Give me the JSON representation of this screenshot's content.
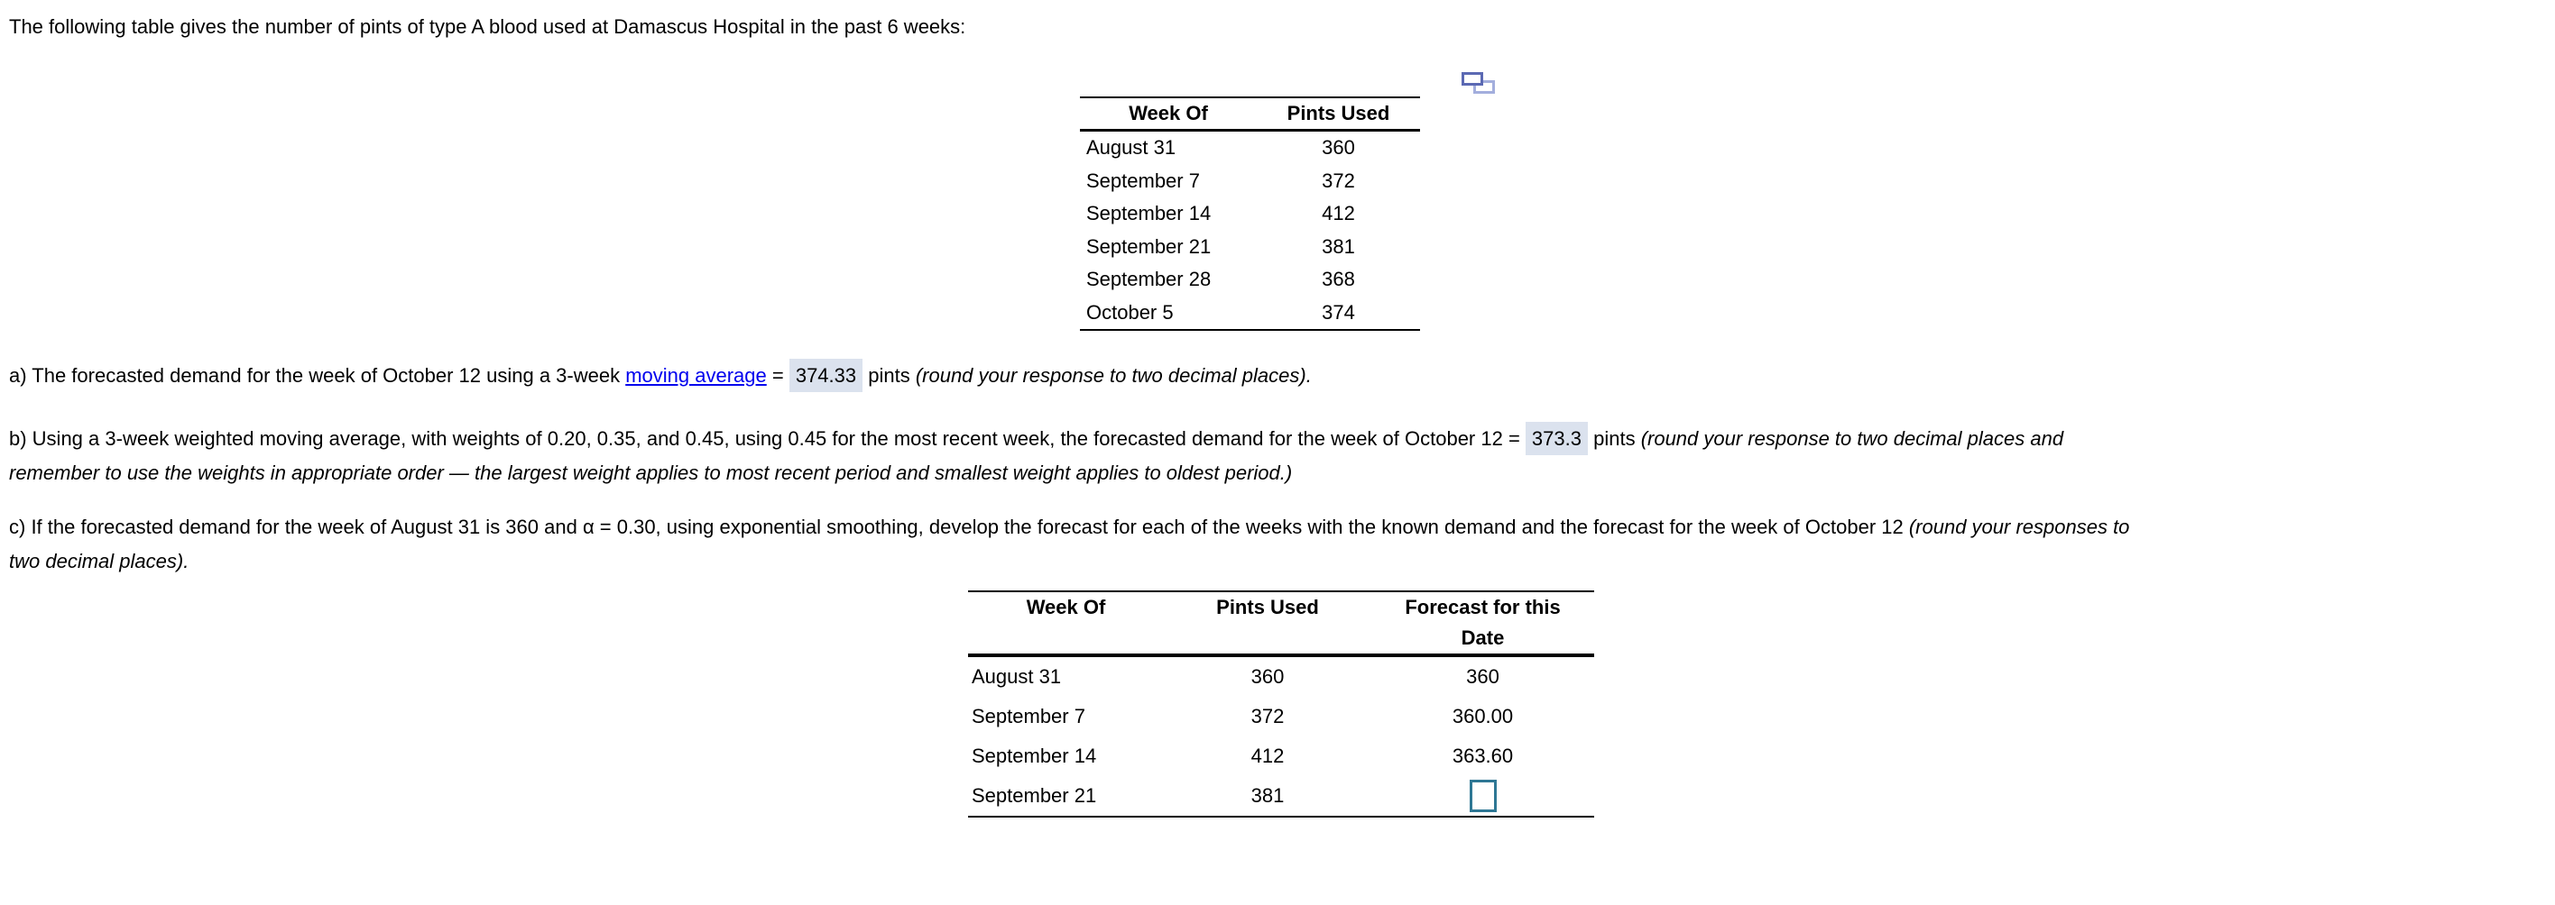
{
  "intro": "The following table gives the number of pints of type A blood used at Damascus Hospital in the past 6 weeks:",
  "icons": {
    "table_popout": "copy-table-icon"
  },
  "colors": {
    "answer_highlight": "#dbe2ee",
    "link": "#0000EE",
    "input_border": "#2e7794",
    "icon_front": "#5b69b3",
    "icon_back": "#a3aedd"
  },
  "table1": {
    "headers": [
      "Week Of",
      "Pints Used"
    ],
    "rows": [
      {
        "week": "August 31",
        "pints": "360"
      },
      {
        "week": "September 7",
        "pints": "372"
      },
      {
        "week": "September 14",
        "pints": "412"
      },
      {
        "week": "September 21",
        "pints": "381"
      },
      {
        "week": "September 28",
        "pints": "368"
      },
      {
        "week": "October 5",
        "pints": "374"
      }
    ]
  },
  "part_a": {
    "prefix": "a) The forecasted demand for the week of October 12 using a 3-week ",
    "link": "moving average",
    "equals": " = ",
    "answer": "374.33",
    "unit": " pints ",
    "note": "(round your response to two decimal places)."
  },
  "part_b": {
    "prefix": "b) Using a 3-week weighted moving average, with weights of 0.20, 0.35, and 0.45, using 0.45 for the most recent week, the forecasted demand for the week of October 12 = ",
    "answer": "373.3",
    "unit": " pints ",
    "note_line1": "(round your response to two decimal places and",
    "note_line2": "remember to use the weights in appropriate order — the largest weight applies to most recent period and smallest weight applies to oldest period.)"
  },
  "part_c": {
    "prefix": "c) If the forecasted demand for the week of August 31 is 360 and α = 0.30, using exponential smoothing, develop the forecast for each of the weeks with the known demand and the forecast for the week of October 12 ",
    "note_line1": "(round your responses to",
    "note_line2": "two decimal places)."
  },
  "table2": {
    "headers": [
      "Week Of",
      "Pints Used",
      "Forecast for this Date"
    ],
    "rows": [
      {
        "week": "August 31",
        "pints": "360",
        "forecast": "360"
      },
      {
        "week": "September 7",
        "pints": "372",
        "forecast": "360.00"
      },
      {
        "week": "September 14",
        "pints": "412",
        "forecast": "363.60"
      },
      {
        "week": "September 21",
        "pints": "381",
        "forecast": ""
      }
    ]
  }
}
